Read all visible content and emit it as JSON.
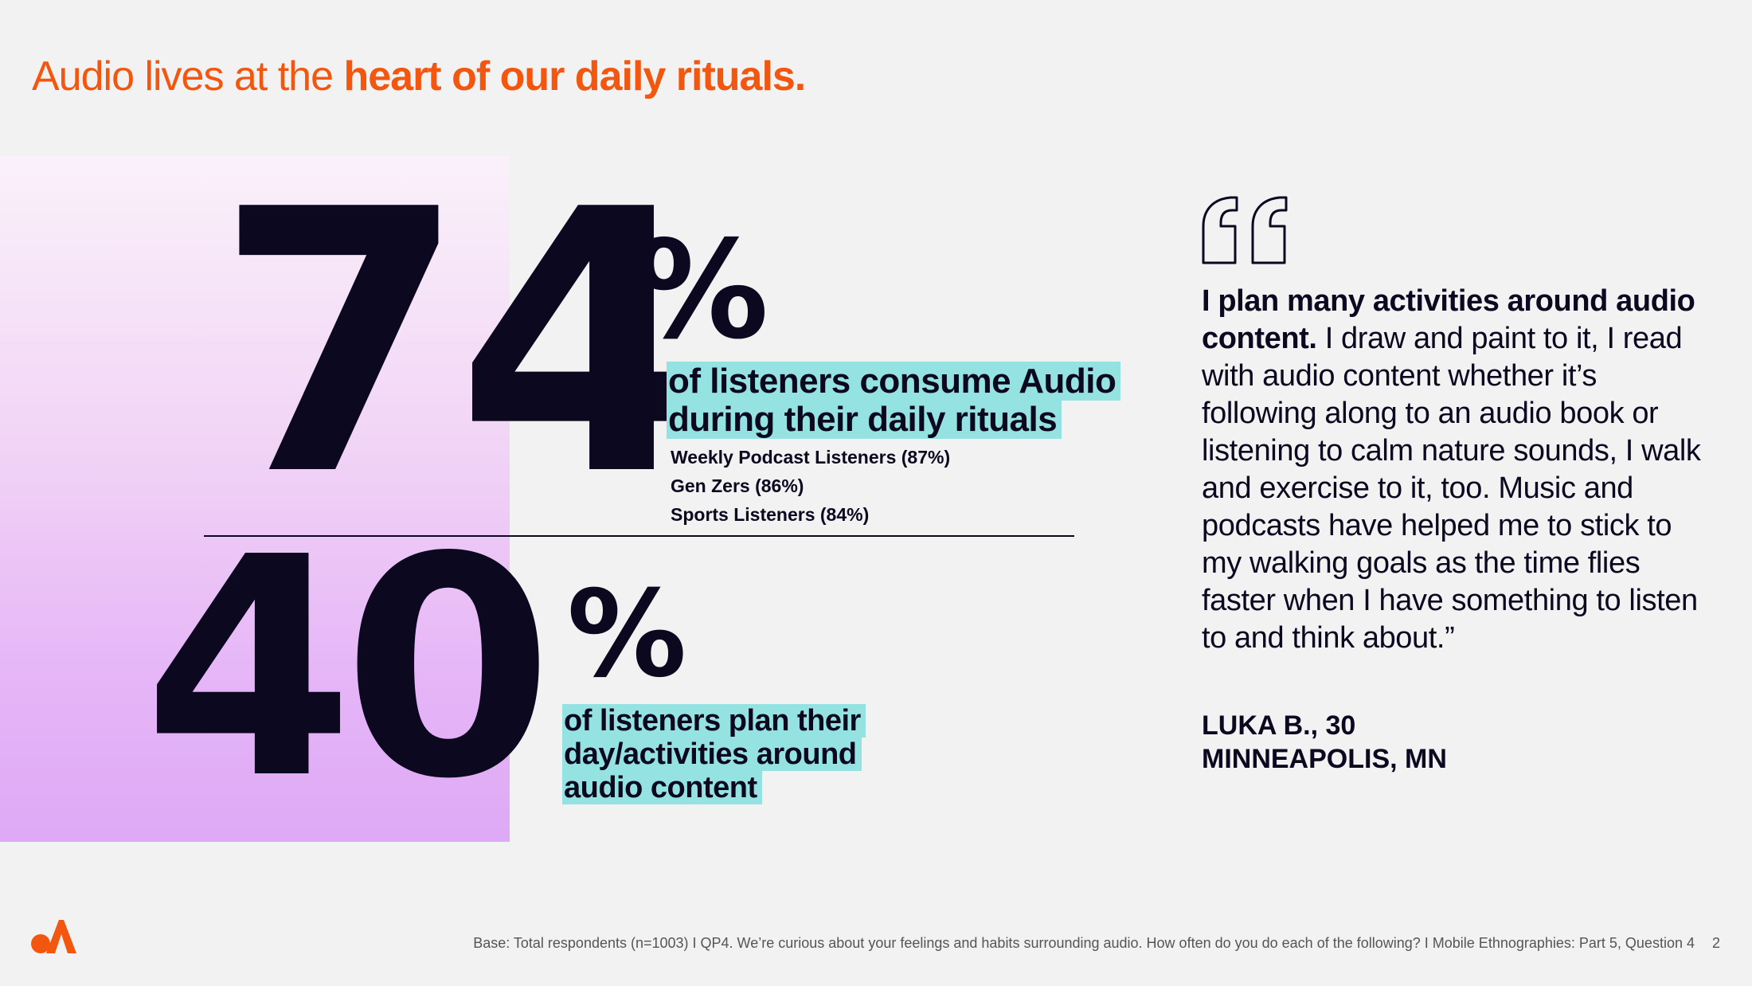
{
  "title": {
    "normal": "Audio lives at the ",
    "bold": "heart of our daily rituals."
  },
  "stat1": {
    "number": "74",
    "percent_sign": "%",
    "value_percent": 74,
    "headline_line1": "of listeners consume Audio",
    "headline_line2": "during their daily rituals",
    "breakdown": [
      "Weekly Podcast Listeners (87%)",
      "Gen Zers (86%)",
      "Sports Listeners (84%)"
    ]
  },
  "stat2": {
    "number": "40",
    "percent_sign": "%",
    "value_percent": 40,
    "headline_line1": "of listeners plan their",
    "headline_line2": "day/activities around",
    "headline_line3": "audio content"
  },
  "quote": {
    "lead": "I plan many activities around audio content.",
    "body": " I draw and paint to it, I read with audio content whether it’s following along to an audio book or listening to calm nature sounds, I walk and exercise to it, too. Music and podcasts have helped me to stick to my walking goals as the time flies faster when I have something to listen to and think about.”",
    "author_line1": "LUKA B., 30",
    "author_line2": "MINNEAPOLIS, MN"
  },
  "footer": {
    "base_note": "Base: Total respondents (n=1003)  I  QP4. We’re curious about your feelings and habits surrounding audio. How often do you do each of the following?  I  Mobile Ethnographies: Part 5, Question 4",
    "page_number": "2"
  },
  "colors": {
    "accent_orange": "#f2560f",
    "highlight_teal": "#94e3e2",
    "ink": "#0b0820",
    "panel_gradient_top": "#faf1fa",
    "panel_gradient_bottom": "#dea9f6"
  },
  "icons": {
    "logo": "audacy-logo-icon",
    "quote": "open-quote-icon"
  }
}
